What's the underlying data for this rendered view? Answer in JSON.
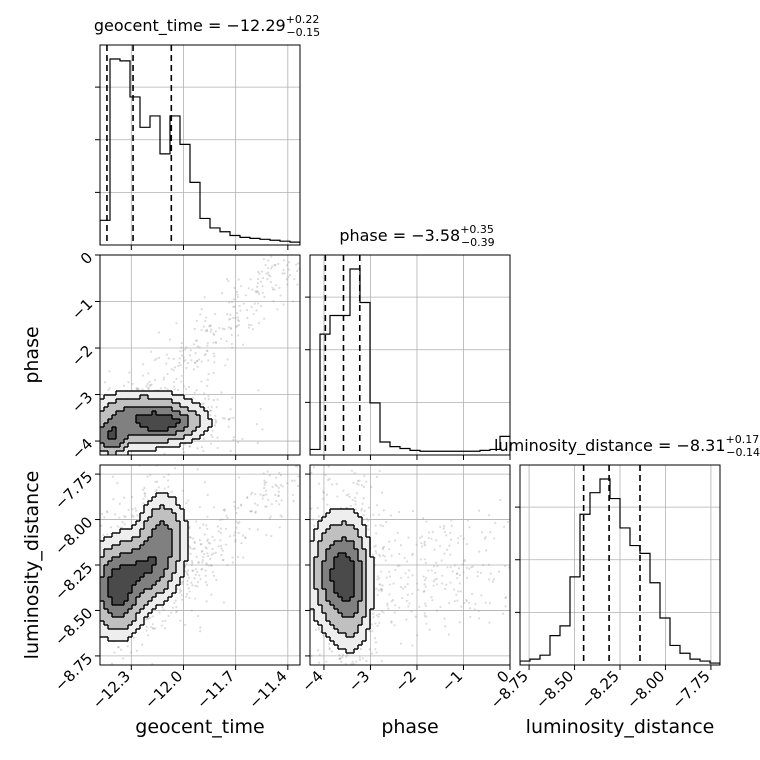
{
  "chart_data": {
    "type": "corner",
    "parameters": [
      "geocent_time",
      "phase",
      "luminosity_distance"
    ],
    "grid": true,
    "titles": [
      {
        "name": "geocent_time",
        "median": "-12.29",
        "plus": "0.22",
        "minus": "0.15"
      },
      {
        "name": "phase",
        "median": "-3.58",
        "plus": "0.35",
        "minus": "0.39"
      },
      {
        "name": "luminosity_distance",
        "median": "-8.31",
        "plus": "0.17",
        "minus": "0.14"
      }
    ],
    "ranges": {
      "geocent_time": [
        -12.48,
        -11.33
      ],
      "phase": [
        -4.3,
        0.0
      ],
      "luminosity_distance": [
        -8.8,
        -7.7
      ]
    },
    "ticks": {
      "geocent_time": {
        "values": [
          -12.3,
          -12.0,
          -11.7,
          -11.4
        ],
        "labels": [
          "−12.3",
          "−12.0",
          "−11.7",
          "−11.4"
        ]
      },
      "phase": {
        "values": [
          -4,
          -3,
          -2,
          -1,
          0
        ],
        "labels": [
          "−4",
          "−3",
          "−2",
          "−1",
          "0"
        ]
      },
      "luminosity_distance": {
        "values": [
          -8.75,
          -8.5,
          -8.25,
          -8.0,
          -7.75
        ],
        "labels": [
          "−8.75",
          "−8.50",
          "−8.25",
          "−8.00",
          "−7.75"
        ]
      }
    },
    "quantiles": {
      "geocent_time": [
        -12.44,
        -12.29,
        -12.07
      ],
      "phase": [
        -3.97,
        -3.58,
        -3.23
      ],
      "luminosity_distance": [
        -8.45,
        -8.31,
        -8.14
      ]
    },
    "histograms": {
      "geocent_time": {
        "bins": [
          -12.48,
          -12.4225,
          -12.365,
          -12.3075,
          -12.25,
          -12.1925,
          -12.135,
          -12.0775,
          -12.02,
          -11.9625,
          -11.905,
          -11.8475,
          -11.79,
          -11.7325,
          -11.675,
          -11.6175,
          -11.56,
          -11.5025,
          -11.445,
          -11.3875,
          -11.33
        ],
        "counts": [
          0.13,
          0.98,
          0.97,
          0.78,
          0.62,
          0.68,
          0.48,
          0.68,
          0.53,
          0.33,
          0.14,
          0.09,
          0.07,
          0.05,
          0.04,
          0.035,
          0.03,
          0.025,
          0.02,
          0.015
        ]
      },
      "phase": {
        "bins": [
          -4.3,
          -4.085,
          -3.87,
          -3.655,
          -3.44,
          -3.225,
          -3.01,
          -2.795,
          -2.58,
          -2.365,
          -2.15,
          -1.935,
          -1.72,
          -1.505,
          -1.29,
          -1.075,
          -0.86,
          -0.645,
          -0.43,
          -0.215,
          0.0
        ],
        "counts": [
          0.03,
          0.65,
          0.75,
          0.75,
          1.0,
          0.82,
          0.28,
          0.07,
          0.045,
          0.035,
          0.025,
          0.02,
          0.02,
          0.02,
          0.02,
          0.02,
          0.02,
          0.025,
          0.03,
          0.1
        ]
      },
      "luminosity_distance": {
        "bins": [
          -8.8,
          -8.745,
          -8.69,
          -8.635,
          -8.58,
          -8.525,
          -8.47,
          -8.415,
          -8.36,
          -8.305,
          -8.25,
          -8.195,
          -8.14,
          -8.085,
          -8.03,
          -7.975,
          -7.92,
          -7.865,
          -7.81,
          -7.755,
          -7.7
        ],
        "counts": [
          0.02,
          0.03,
          0.05,
          0.15,
          0.2,
          0.45,
          0.77,
          0.88,
          0.95,
          0.85,
          0.7,
          0.61,
          0.57,
          0.42,
          0.24,
          0.1,
          0.06,
          0.03,
          0.02,
          0.01
        ]
      }
    },
    "contour_blobs": {
      "phase_vs_geocent_time": [
        {
          "x": -12.23,
          "y": -3.53,
          "sx": 0.16,
          "sy": 0.3,
          "w": 1.0
        },
        {
          "x": -12.42,
          "y": -3.92,
          "sx": 0.06,
          "sy": 0.22,
          "w": 0.9
        },
        {
          "x": -12.08,
          "y": -3.62,
          "sx": 0.1,
          "sy": 0.18,
          "w": 0.7
        }
      ],
      "luminosity_distance_vs_geocent_time": [
        {
          "x": -12.38,
          "y": -8.38,
          "sx": 0.08,
          "sy": 0.13,
          "w": 1.0
        },
        {
          "x": -12.22,
          "y": -8.27,
          "sx": 0.09,
          "sy": 0.1,
          "w": 0.7
        },
        {
          "x": -12.12,
          "y": -8.1,
          "sx": 0.07,
          "sy": 0.12,
          "w": 0.6
        }
      ],
      "luminosity_distance_vs_phase": [
        {
          "x": -3.75,
          "y": -8.3,
          "sx": 0.28,
          "sy": 0.16,
          "w": 1.0
        },
        {
          "x": -3.4,
          "y": -8.35,
          "sx": 0.22,
          "sy": 0.18,
          "w": 0.8
        }
      ]
    },
    "contour_levels": [
      0.75,
      0.45,
      0.2,
      0.07
    ],
    "contour_fills": [
      "#4a4a4a",
      "#808080",
      "#c0c0c0",
      "#eeeeee"
    ],
    "scatter_color": "#9a9a9a"
  }
}
